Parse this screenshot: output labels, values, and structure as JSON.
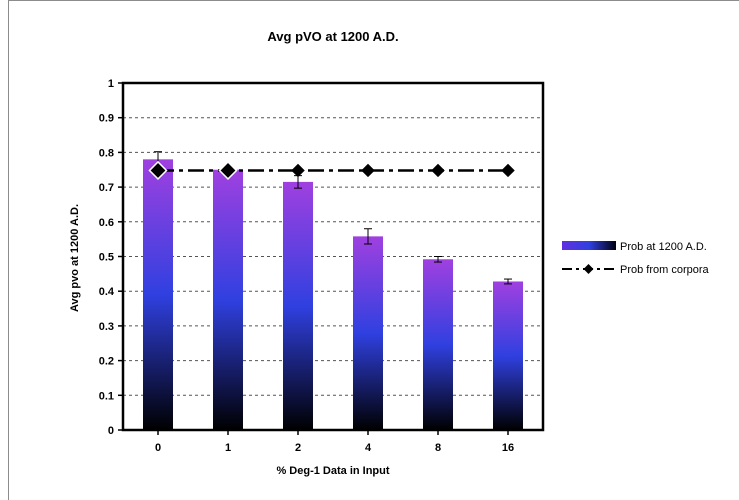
{
  "chart_data": {
    "type": "bar",
    "title": "Avg pVO at 1200 A.D.",
    "xlabel": "% Deg-1 Data in Input",
    "ylabel": "Avg pvo at 1200 A.D.",
    "categories": [
      "0",
      "1",
      "2",
      "4",
      "8",
      "16"
    ],
    "ylim": [
      0,
      1
    ],
    "yticks": [
      "0",
      "0.1",
      "0.2",
      "0.3",
      "0.4",
      "0.5",
      "0.6",
      "0.7",
      "0.8",
      "0.9",
      "1"
    ],
    "grid": "horizontal dashed",
    "legend_position": "right",
    "series": [
      {
        "name": "Prob at 1200 A.D.",
        "kind": "bar",
        "values": [
          0.78,
          0.75,
          0.715,
          0.558,
          0.492,
          0.428
        ],
        "error": [
          0.022,
          0.008,
          0.018,
          0.022,
          0.008,
          0.007
        ],
        "gradient": [
          "#a040e0",
          "#3040e0",
          "#000000"
        ]
      },
      {
        "name": "Prob from corpora",
        "kind": "line",
        "values": [
          0.748,
          0.748,
          0.748,
          0.748,
          0.748,
          0.748
        ],
        "color": "#000000"
      }
    ]
  }
}
